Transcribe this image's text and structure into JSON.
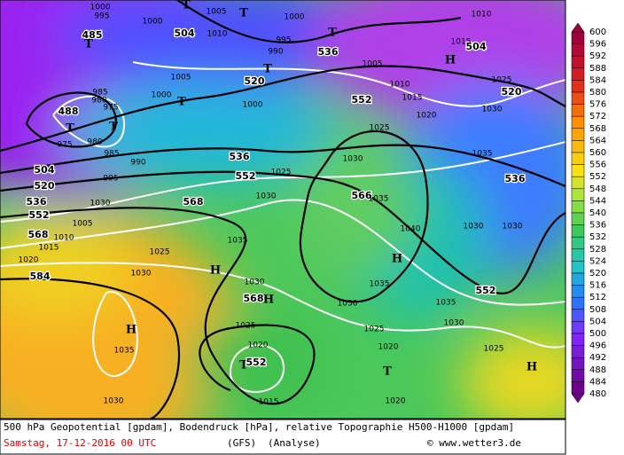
{
  "map": {
    "labels": [
      "1000",
      "995",
      "485",
      "T",
      "T",
      "1005",
      "T",
      "1000",
      "504",
      "1010",
      "1000",
      "T",
      "995",
      "990",
      "T",
      "520",
      "536",
      "1005",
      "1005",
      "1000",
      "T",
      "1000",
      "985",
      "980",
      "975",
      "488",
      "T",
      "T",
      "975",
      "980",
      "985",
      "990",
      "995",
      "504",
      "520",
      "536",
      "552",
      "568",
      "584",
      "1020",
      "1015",
      "1010",
      "1005",
      "1030",
      "568",
      "552",
      "536",
      "1025",
      "1030",
      "1030",
      "566",
      "1035",
      "1035",
      "1025",
      "1030",
      "H",
      "H",
      "1035",
      "1030",
      "1030",
      "568",
      "H",
      "1030",
      "1035",
      "H",
      "1040",
      "1030",
      "1030",
      "552",
      "1035",
      "1030",
      "1025",
      "1020",
      "1025",
      "1020",
      "T",
      "552",
      "1015",
      "T",
      "1020",
      "1025",
      "H",
      "1025",
      "552",
      "1020",
      "1015",
      "1010",
      "1030",
      "1035",
      "536",
      "520",
      "1025",
      "H",
      "504",
      "1015",
      "1010"
    ],
    "colorbar": [
      600,
      596,
      592,
      588,
      584,
      580,
      576,
      572,
      568,
      564,
      560,
      556,
      552,
      548,
      544,
      540,
      536,
      532,
      528,
      524,
      520,
      516,
      512,
      508,
      504,
      500,
      496,
      492,
      488,
      484,
      480
    ],
    "footer": {
      "line1": "500 hPa Geopotential [gpdam], Bodendruck [hPa], relative Topographie H500-H1000 [gpdam]",
      "date": "Samstag, 17-12-2016   00 UTC",
      "model": "(GFS)",
      "run": "(Analyse)",
      "copyright": "© www.wetter3.de"
    }
  }
}
